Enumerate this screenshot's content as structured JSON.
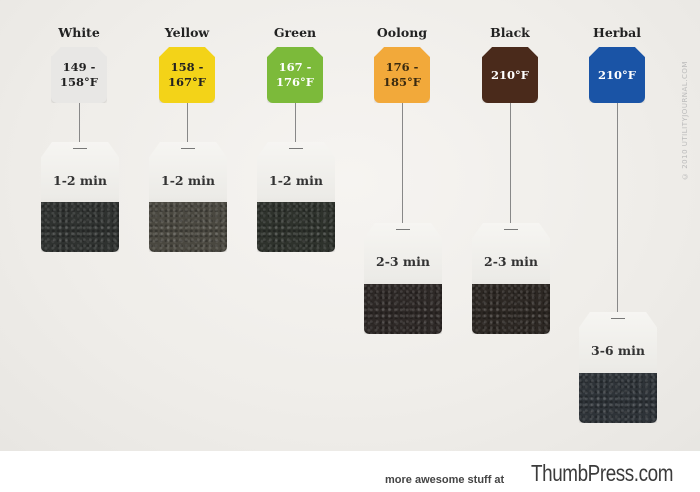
{
  "teas": [
    {
      "name": "White",
      "temp": "149 -\n158°F",
      "time": "1-2 min",
      "tag_color": "#e8e7e5",
      "tag_text_color": "#222222",
      "leaf_color": "#2f3230"
    },
    {
      "name": "Yellow",
      "temp": "158 -\n167°F",
      "time": "1-2 min",
      "tag_color": "#f3d318",
      "tag_text_color": "#222222",
      "leaf_color": "#4a4840"
    },
    {
      "name": "Green",
      "temp": "167 -\n176°F",
      "time": "1-2 min",
      "tag_color": "#7cba3a",
      "tag_text_color": "#ffffff",
      "leaf_color": "#2e322c"
    },
    {
      "name": "Oolong",
      "temp": "176 -\n185°F",
      "time": "2-3 min",
      "tag_color": "#f2a93a",
      "tag_text_color": "#3a2a10",
      "leaf_color": "#2d2826"
    },
    {
      "name": "Black",
      "temp": "210°F",
      "time": "2-3 min",
      "tag_color": "#4a2a1b",
      "tag_text_color": "#ffffff",
      "leaf_color": "#2c2723"
    },
    {
      "name": "Herbal",
      "temp": "210°F",
      "time": "3-6 min",
      "tag_color": "#1a54a6",
      "tag_text_color": "#ffffff",
      "leaf_color": "#2e3338"
    }
  ],
  "copyright": "© 2010 UTILITYJOURNAL.COM",
  "footer": {
    "text": "more awesome stuff at",
    "brand": "ThumbPress.com"
  }
}
